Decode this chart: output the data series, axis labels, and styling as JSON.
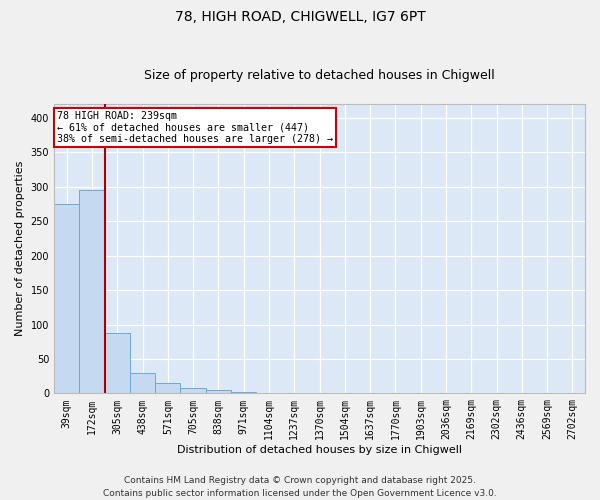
{
  "title1": "78, HIGH ROAD, CHIGWELL, IG7 6PT",
  "title2": "Size of property relative to detached houses in Chigwell",
  "xlabel": "Distribution of detached houses by size in Chigwell",
  "ylabel": "Number of detached properties",
  "bin_labels": [
    "39sqm",
    "172sqm",
    "305sqm",
    "438sqm",
    "571sqm",
    "705sqm",
    "838sqm",
    "971sqm",
    "1104sqm",
    "1237sqm",
    "1370sqm",
    "1504sqm",
    "1637sqm",
    "1770sqm",
    "1903sqm",
    "2036sqm",
    "2169sqm",
    "2302sqm",
    "2436sqm",
    "2569sqm",
    "2702sqm"
  ],
  "bar_heights": [
    275,
    295,
    88,
    30,
    15,
    8,
    5,
    2,
    1,
    1,
    1,
    0,
    0,
    0,
    0,
    0,
    0,
    0,
    0,
    0,
    0
  ],
  "bar_color": "#c5d9f0",
  "bar_edge_color": "#6aaad4",
  "bg_color": "#dce8f5",
  "grid_color": "#ffffff",
  "vline_x": 1.5,
  "vline_color": "#aa0000",
  "annotation_text": "78 HIGH ROAD: 239sqm\n← 61% of detached houses are smaller (447)\n38% of semi-detached houses are larger (278) →",
  "annotation_box_color": "#cc0000",
  "annotation_text_color": "#000000",
  "ylim": [
    0,
    420
  ],
  "yticks": [
    0,
    50,
    100,
    150,
    200,
    250,
    300,
    350,
    400
  ],
  "footer": "Contains HM Land Registry data © Crown copyright and database right 2025.\nContains public sector information licensed under the Open Government Licence v3.0.",
  "title1_fontsize": 10,
  "title2_fontsize": 9,
  "xlabel_fontsize": 8,
  "ylabel_fontsize": 8,
  "tick_fontsize": 7,
  "footer_fontsize": 6.5,
  "fig_bg": "#f0f0f0"
}
